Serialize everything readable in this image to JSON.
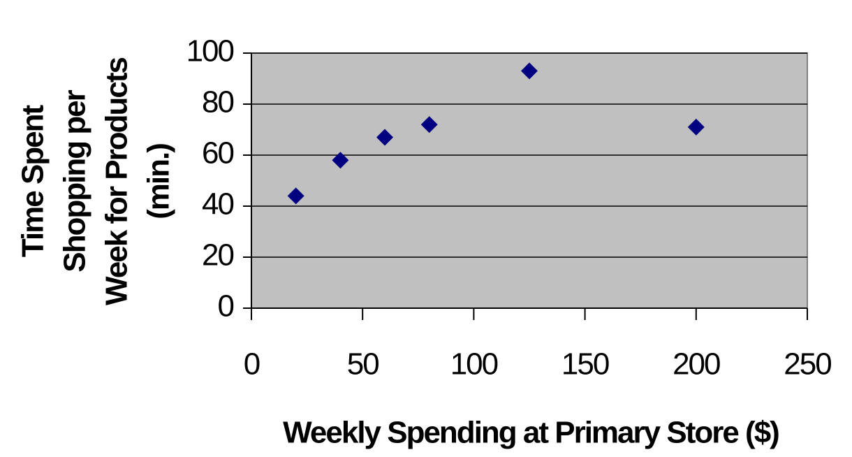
{
  "chart_data": {
    "type": "scatter",
    "xlabel": "Weekly Spending at Primary Store ($)",
    "ylabel": [
      "Time Spent",
      "Shopping per",
      "Week for Products",
      "(min.)"
    ],
    "x": [
      20,
      40,
      60,
      80,
      125,
      200
    ],
    "series": [
      {
        "color": "#000080",
        "values": [
          44,
          58,
          67,
          72,
          93,
          71
        ]
      }
    ],
    "xlim": [
      0,
      250
    ],
    "xticks": [
      0,
      50,
      100,
      150,
      200,
      250
    ],
    "ylim": [
      0,
      100
    ],
    "yticks": [
      0,
      20,
      40,
      60,
      80,
      100
    ],
    "grid": true,
    "background": "#c0c0c0"
  }
}
